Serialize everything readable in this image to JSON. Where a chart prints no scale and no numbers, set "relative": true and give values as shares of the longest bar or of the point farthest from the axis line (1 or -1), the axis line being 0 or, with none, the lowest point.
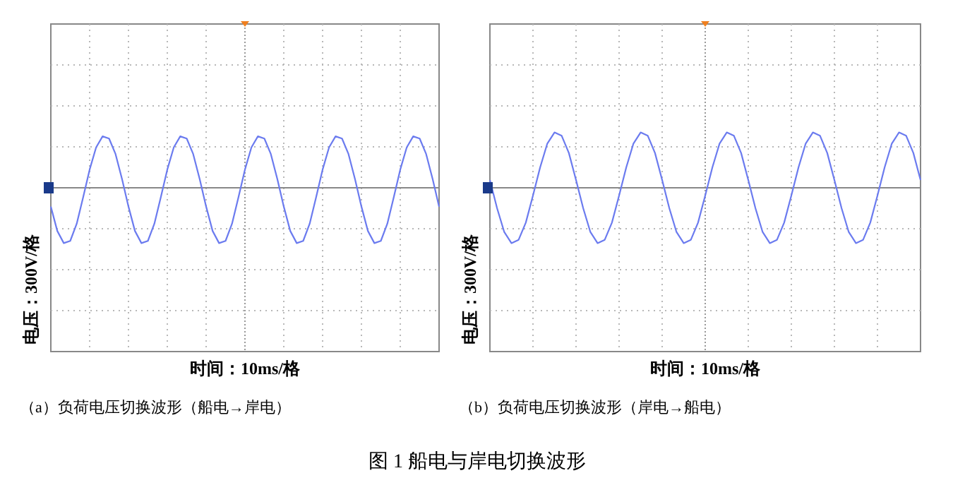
{
  "chart_data": [
    {
      "type": "line",
      "relative": true,
      "title": "（a）负荷电压切换波形（船电→岸电）",
      "xlabel": "时间：10ms/格",
      "ylabel": "电压：300V/格",
      "grid": true,
      "categories": [
        null,
        null,
        null,
        null,
        null,
        null,
        null,
        null,
        null,
        null,
        null,
        null,
        null,
        null,
        null,
        null,
        null,
        null,
        null,
        null,
        null,
        null,
        null,
        null,
        null,
        null,
        null,
        null,
        null,
        null,
        null,
        null,
        null,
        null,
        null,
        null,
        null,
        null,
        null,
        null,
        null,
        null,
        null,
        null,
        null,
        null,
        null,
        null,
        null,
        null,
        null,
        null,
        null,
        null,
        null,
        null,
        null,
        null,
        null,
        null,
        null
      ],
      "series": [
        {
          "color": "#6b7bef",
          "values": [
            -0.34,
            -0.78,
            -1,
            -0.96,
            -0.65,
            -0.17,
            0.33,
            0.73,
            0.93,
            0.89,
            0.61,
            0.16,
            -0.34,
            -0.78,
            -1,
            -0.96,
            -0.65,
            -0.17,
            0.33,
            0.73,
            0.93,
            0.89,
            0.61,
            0.16,
            -0.34,
            -0.78,
            -1,
            -0.96,
            -0.65,
            -0.17,
            0.33,
            0.73,
            0.93,
            0.89,
            0.61,
            0.16,
            -0.34,
            -0.78,
            -1,
            -0.96,
            -0.65,
            -0.17,
            0.33,
            0.73,
            0.93,
            0.89,
            0.61,
            0.16,
            -0.34,
            -0.78,
            -1,
            -0.96,
            -0.65,
            -0.17,
            0.33,
            0.73,
            0.93,
            0.89,
            0.61,
            0.16,
            -0.34
          ]
        }
      ],
      "annotations": [
        "图 1 船电与岸电切换波形"
      ]
    },
    {
      "type": "line",
      "relative": true,
      "title": "（b）负荷电压切换波形（岸电→船电）",
      "xlabel": "时间：10ms/格",
      "ylabel": "电压：300V/格",
      "grid": true,
      "categories": [
        null,
        null,
        null,
        null,
        null,
        null,
        null,
        null,
        null,
        null,
        null,
        null,
        null,
        null,
        null,
        null,
        null,
        null,
        null,
        null,
        null,
        null,
        null,
        null,
        null,
        null,
        null,
        null,
        null,
        null,
        null,
        null,
        null,
        null,
        null,
        null,
        null,
        null,
        null,
        null,
        null,
        null,
        null,
        null,
        null,
        null,
        null,
        null,
        null,
        null,
        null,
        null,
        null,
        null,
        null,
        null,
        null,
        null,
        null,
        null,
        null
      ],
      "series": [
        {
          "color": "#6b7bef",
          "values": [
            0.14,
            -0.37,
            -0.8,
            -1,
            -0.94,
            -0.63,
            -0.14,
            0.37,
            0.8,
            1,
            0.94,
            0.63,
            0.14,
            -0.37,
            -0.8,
            -1,
            -0.94,
            -0.63,
            -0.14,
            0.37,
            0.8,
            1,
            0.94,
            0.63,
            0.14,
            -0.37,
            -0.8,
            -1,
            -0.94,
            -0.63,
            -0.14,
            0.37,
            0.8,
            1,
            0.94,
            0.63,
            0.14,
            -0.37,
            -0.8,
            -1,
            -0.94,
            -0.63,
            -0.14,
            0.37,
            0.8,
            1,
            0.94,
            0.63,
            0.14,
            -0.37,
            -0.8,
            -1,
            -0.94,
            -0.63,
            -0.14,
            0.37,
            0.8,
            1,
            0.94,
            0.63,
            0.14
          ]
        }
      ]
    }
  ]
}
